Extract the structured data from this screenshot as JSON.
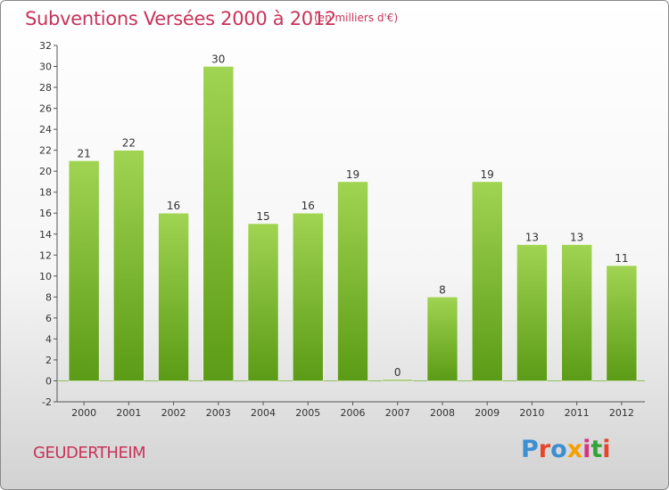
{
  "header": {
    "title": "Subventions Versées 2000 à 2012",
    "subtitle": "(en milliers d'€)"
  },
  "footer": {
    "commune": "GEUDERTHEIM",
    "logo_text": "Proxiti",
    "logo_colors": [
      "#3d8fd1",
      "#e8452c",
      "#3d8fd1",
      "#f4a000",
      "#d63384",
      "#37a23a",
      "#e8452c"
    ]
  },
  "colors": {
    "bar_top": "#a0d452",
    "bar_bottom": "#5b9b16",
    "text_accent": "#c8335a"
  },
  "chart_data": {
    "type": "bar",
    "title": "Subventions Versées 2000 à 2012",
    "subtitle": "(en milliers d'€)",
    "xlabel": "",
    "ylabel": "",
    "categories": [
      "2000",
      "2001",
      "2002",
      "2003",
      "2004",
      "2005",
      "2006",
      "2007",
      "2008",
      "2009",
      "2010",
      "2011",
      "2012"
    ],
    "values": [
      21,
      22,
      16,
      30,
      15,
      16,
      19,
      0,
      8,
      19,
      13,
      13,
      11
    ],
    "ylim": [
      -2,
      32
    ],
    "yticks": [
      -2,
      0,
      2,
      4,
      6,
      8,
      10,
      12,
      14,
      16,
      18,
      20,
      22,
      24,
      26,
      28,
      30,
      32
    ],
    "grid": false,
    "data_labels": true
  }
}
